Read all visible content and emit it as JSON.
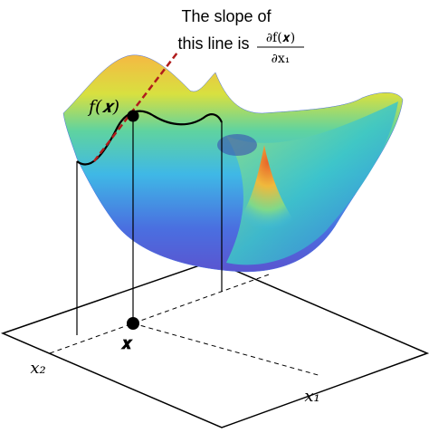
{
  "annotation": {
    "line1": "The slope of",
    "line2": "this line is",
    "fraction": {
      "numerator": "∂f(𝒙)",
      "denominator": "∂x₁"
    }
  },
  "labels": {
    "function_value": "f(𝒙)",
    "point": "𝒙",
    "axis_x2": "x₂",
    "axis_x1": "x₁"
  }
}
